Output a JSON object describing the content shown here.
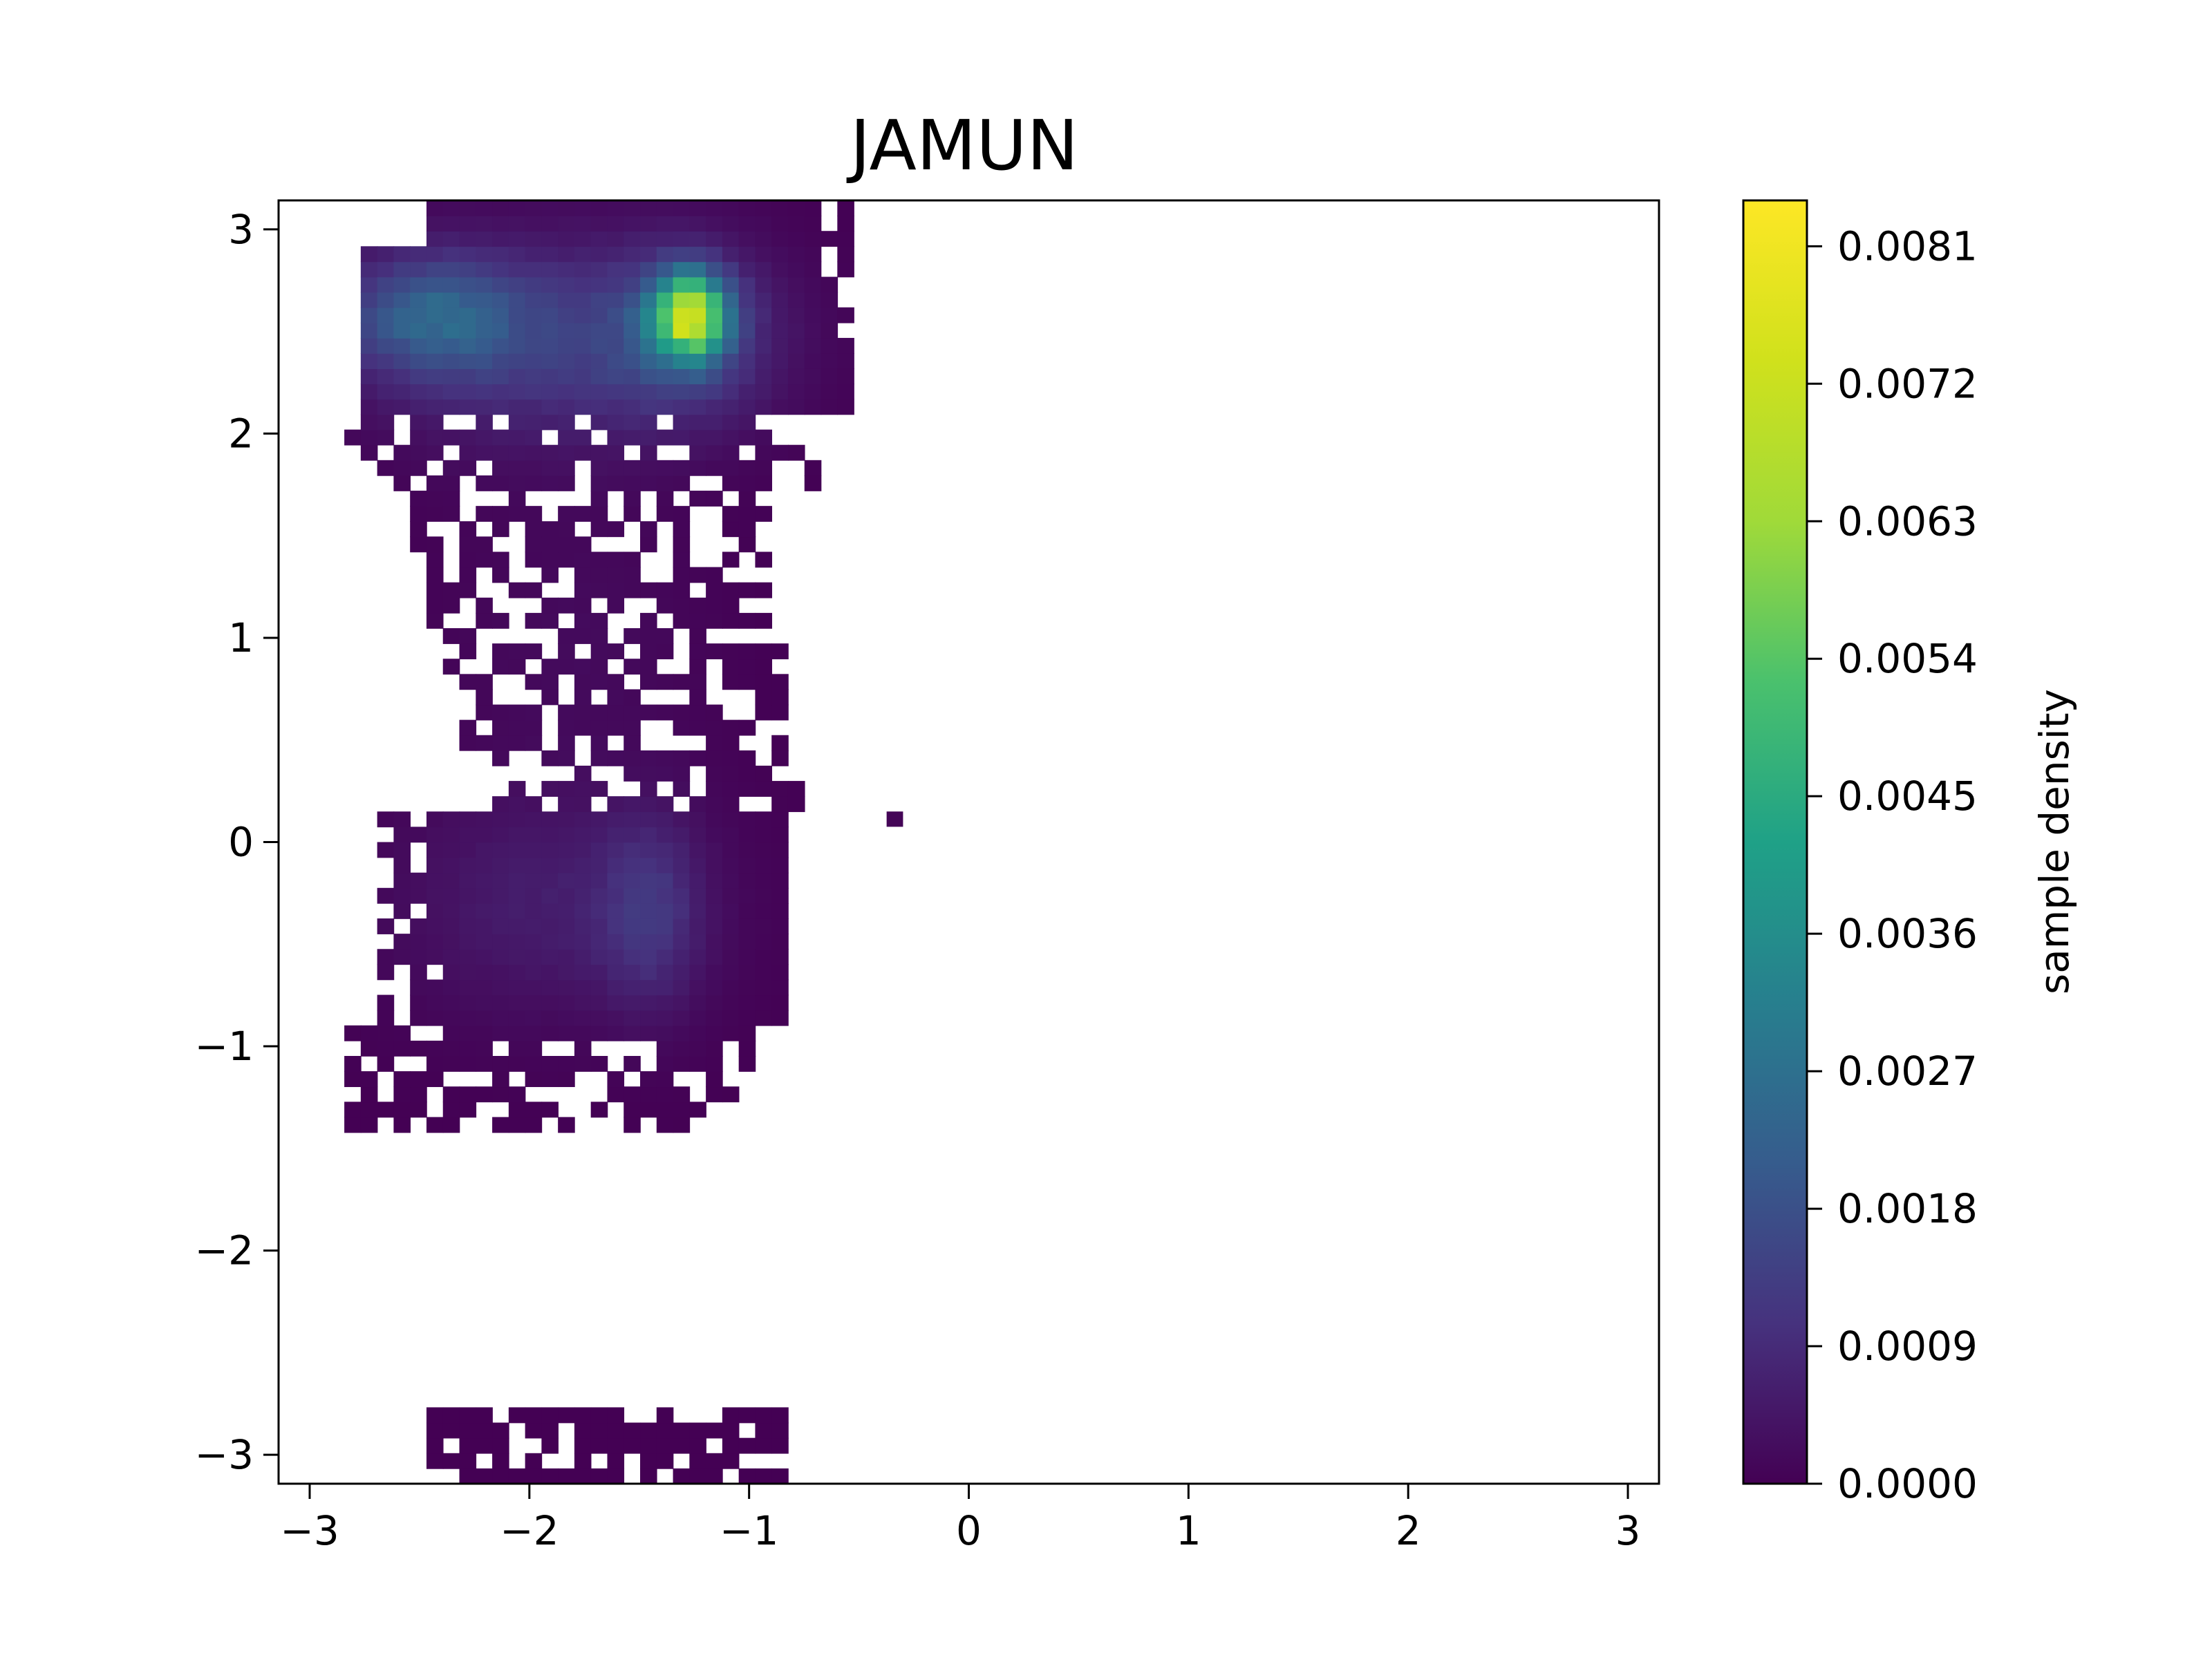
{
  "chart_data": {
    "type": "heatmap",
    "title": "JAMUN",
    "xlabel": "",
    "ylabel": "",
    "xlim": [
      -3.1416,
      3.1416
    ],
    "ylim": [
      -3.1416,
      3.1416
    ],
    "x_ticks": [
      "−3",
      "−2",
      "−1",
      "0",
      "1",
      "2",
      "3"
    ],
    "y_ticks": [
      "−3",
      "−2",
      "−1",
      "0",
      "1",
      "2",
      "3"
    ],
    "grid": false,
    "colormap": "viridis",
    "colorbar": {
      "label": "sample density",
      "range": [
        0.0,
        0.0084
      ],
      "ticks": [
        "0.0000",
        "0.0009",
        "0.0018",
        "0.0027",
        "0.0036",
        "0.0045",
        "0.0054",
        "0.0063",
        "0.0072",
        "0.0081"
      ]
    },
    "density_regions": [
      {
        "region": "upper basin peak",
        "x": -1.25,
        "y": 2.6,
        "density": 0.0082
      },
      {
        "region": "upper basin broad",
        "x": -2.4,
        "y": 2.6,
        "density": 0.0027
      },
      {
        "region": "lower basin peak",
        "x": -1.45,
        "y": -0.3,
        "density": 0.0016
      },
      {
        "region": "lower basin broad",
        "x": -2.2,
        "y": -0.4,
        "density": 0.0008
      },
      {
        "region": "bridge region",
        "x": -1.8,
        "y": 1.0,
        "density": 0.0002
      },
      {
        "region": "wrap-around bottom edge",
        "x": -1.6,
        "y": -3.0,
        "density": 0.0001
      }
    ]
  }
}
